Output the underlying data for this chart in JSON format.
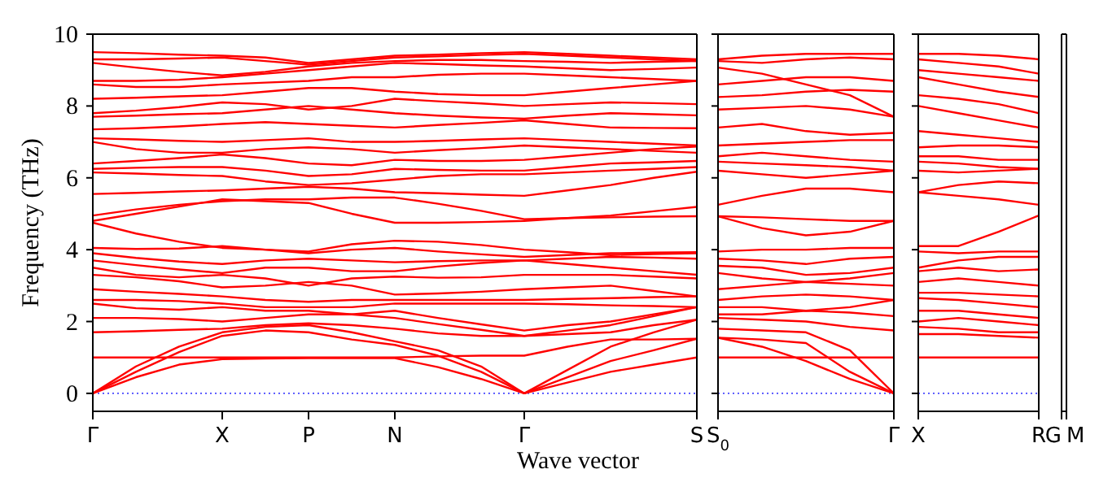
{
  "chart_data": [
    {
      "type": "line",
      "xlabel": "Wave vector",
      "ylabel": "Frequency (THz)",
      "categories": [
        "Γ",
        null,
        null,
        "X",
        null,
        "P",
        null,
        "N",
        null,
        null,
        "Γ",
        null,
        null,
        null,
        "S"
      ],
      "ylim": [
        -0.5,
        10
      ],
      "yticks": [
        0,
        2,
        4,
        6,
        8,
        10
      ],
      "marker": "none",
      "line_style": "solid",
      "ref_lines": [
        {
          "axis": "y",
          "value": 0,
          "color": "#0000ff",
          "line_style": "dotted"
        }
      ],
      "series": [
        {
          "color": "#ff0000",
          "values": [
            0,
            0.45,
            0.8,
            0.95,
            0.97,
            0.98,
            0.98,
            0.98,
            0.73,
            0.4,
            0,
            0.3,
            0.6,
            0.8,
            1.0
          ]
        },
        {
          "color": "#ff0000",
          "values": [
            0,
            0.6,
            1.15,
            1.6,
            1.75,
            1.7,
            1.5,
            1.35,
            1.05,
            0.6,
            0,
            0.45,
            0.9,
            1.2,
            1.52
          ]
        },
        {
          "color": "#ff0000",
          "values": [
            0,
            0.75,
            1.3,
            1.7,
            1.85,
            1.9,
            1.7,
            1.45,
            1.2,
            0.75,
            0,
            0.65,
            1.3,
            1.7,
            2.05
          ]
        },
        {
          "color": "#ff0000",
          "values": [
            1,
            1,
            1,
            1,
            1,
            1,
            1,
            1,
            1.03,
            1.05,
            1.05,
            1.3,
            1.5,
            1.5,
            1.52
          ]
        },
        {
          "color": "#ff0000",
          "values": [
            1.7,
            1.73,
            1.77,
            1.8,
            1.9,
            1.95,
            1.9,
            1.8,
            1.67,
            1.6,
            1.6,
            1.75,
            1.9,
            2.15,
            2.4
          ]
        },
        {
          "color": "#ff0000",
          "values": [
            2.1,
            2.1,
            2.07,
            2.0,
            2.1,
            2.2,
            2.2,
            2.1,
            1.93,
            1.77,
            1.6,
            1.65,
            1.7,
            1.9,
            2.05
          ]
        },
        {
          "color": "#ff0000",
          "values": [
            2.5,
            2.37,
            2.33,
            2.4,
            2.3,
            2.3,
            2.2,
            2.3,
            2.1,
            1.92,
            1.75,
            1.9,
            2.0,
            2.2,
            2.4
          ]
        },
        {
          "color": "#ff0000",
          "values": [
            2.6,
            2.6,
            2.57,
            2.5,
            2.4,
            2.4,
            2.4,
            2.5,
            2.5,
            2.5,
            2.5,
            2.48,
            2.45,
            2.43,
            2.4
          ]
        },
        {
          "color": "#ff0000",
          "values": [
            2.9,
            2.83,
            2.77,
            2.7,
            2.6,
            2.55,
            2.6,
            2.6,
            2.6,
            2.6,
            2.6,
            2.63,
            2.65,
            2.68,
            2.7
          ]
        },
        {
          "color": "#ff0000",
          "values": [
            3.3,
            3.23,
            3.12,
            2.95,
            3.0,
            3.1,
            3.0,
            2.75,
            2.78,
            2.83,
            2.9,
            2.95,
            3.0,
            2.85,
            2.7
          ]
        },
        {
          "color": "#ff0000",
          "values": [
            3.5,
            3.3,
            3.23,
            3.3,
            3.2,
            3.0,
            3.2,
            3.25,
            3.22,
            3.23,
            3.3,
            3.3,
            3.3,
            3.25,
            3.2
          ]
        },
        {
          "color": "#ff0000",
          "values": [
            3.7,
            3.57,
            3.45,
            3.35,
            3.5,
            3.5,
            3.4,
            3.4,
            3.53,
            3.63,
            3.7,
            3.6,
            3.5,
            3.4,
            3.3
          ]
        },
        {
          "color": "#ff0000",
          "values": [
            3.9,
            3.77,
            3.67,
            3.6,
            3.7,
            3.75,
            3.7,
            3.65,
            3.68,
            3.7,
            3.7,
            3.75,
            3.8,
            3.78,
            3.75
          ]
        },
        {
          "color": "#ff0000",
          "values": [
            4.05,
            4.02,
            4.03,
            4.1,
            4.0,
            3.9,
            4.0,
            4.05,
            3.95,
            3.87,
            3.8,
            3.85,
            3.9,
            3.92,
            3.93
          ]
        },
        {
          "color": "#ff0000",
          "values": [
            4.75,
            4.45,
            4.22,
            4.05,
            4.0,
            3.95,
            4.15,
            4.25,
            4.22,
            4.13,
            4.0,
            3.93,
            3.85,
            3.88,
            3.9
          ]
        },
        {
          "color": "#ff0000",
          "values": [
            4.8,
            5.0,
            5.2,
            5.4,
            5.35,
            5.3,
            5.0,
            4.75,
            4.75,
            4.77,
            4.8,
            4.88,
            4.95,
            5.07,
            5.19
          ]
        },
        {
          "color": "#ff0000",
          "values": [
            4.95,
            5.12,
            5.25,
            5.35,
            5.4,
            5.4,
            5.45,
            5.45,
            5.28,
            5.08,
            4.85,
            4.88,
            4.9,
            4.92,
            4.93
          ]
        },
        {
          "color": "#ff0000",
          "values": [
            5.55,
            5.58,
            5.62,
            5.65,
            5.7,
            5.75,
            5.7,
            5.6,
            5.57,
            5.53,
            5.5,
            5.65,
            5.8,
            6.0,
            6.17
          ]
        },
        {
          "color": "#ff0000",
          "values": [
            6.15,
            6.12,
            6.08,
            6.05,
            5.9,
            5.8,
            5.85,
            5.95,
            6.05,
            6.1,
            6.1,
            6.15,
            6.2,
            6.25,
            6.3
          ]
        },
        {
          "color": "#ff0000",
          "values": [
            6.25,
            6.28,
            6.3,
            6.3,
            6.2,
            6.05,
            6.1,
            6.25,
            6.22,
            6.2,
            6.2,
            6.3,
            6.4,
            6.43,
            6.47
          ]
        },
        {
          "color": "#ff0000",
          "values": [
            6.4,
            6.47,
            6.55,
            6.65,
            6.55,
            6.4,
            6.35,
            6.5,
            6.47,
            6.47,
            6.5,
            6.6,
            6.7,
            6.8,
            6.87
          ]
        },
        {
          "color": "#ff0000",
          "values": [
            7.0,
            6.8,
            6.7,
            6.7,
            6.8,
            6.85,
            6.8,
            6.7,
            6.77,
            6.83,
            6.9,
            6.85,
            6.8,
            6.75,
            6.7
          ]
        },
        {
          "color": "#ff0000",
          "values": [
            7.1,
            7.07,
            7.03,
            7.0,
            7.05,
            7.1,
            7.0,
            7.0,
            7.03,
            7.07,
            7.1,
            7.05,
            7.0,
            6.95,
            6.9
          ]
        },
        {
          "color": "#ff0000",
          "values": [
            7.35,
            7.38,
            7.43,
            7.5,
            7.55,
            7.5,
            7.45,
            7.4,
            7.47,
            7.53,
            7.6,
            7.5,
            7.4,
            7.39,
            7.38
          ]
        },
        {
          "color": "#ff0000",
          "values": [
            7.7,
            7.73,
            7.77,
            7.8,
            7.9,
            8.0,
            7.9,
            7.8,
            7.73,
            7.68,
            7.65,
            7.73,
            7.8,
            7.77,
            7.74
          ]
        },
        {
          "color": "#ff0000",
          "values": [
            7.8,
            7.87,
            7.97,
            8.1,
            8.05,
            7.9,
            8.0,
            8.2,
            8.13,
            8.07,
            8.0,
            8.05,
            8.1,
            8.08,
            8.05
          ]
        },
        {
          "color": "#ff0000",
          "values": [
            8.2,
            8.23,
            8.27,
            8.3,
            8.4,
            8.5,
            8.5,
            8.4,
            8.33,
            8.3,
            8.3,
            8.4,
            8.5,
            8.6,
            8.7
          ]
        },
        {
          "color": "#ff0000",
          "values": [
            8.6,
            8.53,
            8.53,
            8.6,
            8.65,
            8.7,
            8.8,
            8.8,
            8.87,
            8.9,
            8.9,
            8.85,
            8.8,
            8.75,
            8.7
          ]
        },
        {
          "color": "#ff0000",
          "values": [
            8.7,
            8.7,
            8.73,
            8.8,
            8.9,
            9.0,
            9.1,
            9.2,
            9.17,
            9.13,
            9.1,
            9.05,
            9.0,
            9.03,
            9.07
          ]
        },
        {
          "color": "#ff0000",
          "values": [
            9.2,
            9.07,
            8.95,
            8.85,
            8.95,
            9.1,
            9.2,
            9.25,
            9.28,
            9.28,
            9.25,
            9.23,
            9.2,
            9.23,
            9.25
          ]
        },
        {
          "color": "#ff0000",
          "values": [
            9.3,
            9.3,
            9.32,
            9.35,
            9.25,
            9.15,
            9.25,
            9.35,
            9.38,
            9.42,
            9.45,
            9.4,
            9.35,
            9.3,
            9.25
          ]
        },
        {
          "color": "#ff0000",
          "values": [
            9.5,
            9.47,
            9.43,
            9.4,
            9.35,
            9.2,
            9.3,
            9.4,
            9.43,
            9.47,
            9.5,
            9.45,
            9.4,
            9.35,
            9.3
          ]
        }
      ]
    },
    {
      "type": "line",
      "categories": [
        "S$_{0}$",
        null,
        null,
        null,
        "Γ"
      ],
      "ylim": [
        -0.5,
        10
      ],
      "yticks": [
        0,
        2,
        4,
        6,
        8,
        10
      ],
      "tick_labels": "x",
      "marker": "none",
      "line_style": "solid",
      "ref_lines": [
        {
          "axis": "y",
          "value": 0,
          "color": "#0000ff",
          "line_style": "dotted"
        }
      ],
      "series": [
        {
          "color": "#ff0000",
          "values": [
            9.3,
            9.4,
            9.45,
            9.45,
            9.45
          ]
        },
        {
          "color": "#ff0000",
          "values": [
            9.25,
            9.2,
            9.3,
            9.35,
            9.3
          ]
        },
        {
          "color": "#ff0000",
          "values": [
            9.07,
            8.9,
            8.6,
            8.3,
            7.7
          ]
        },
        {
          "color": "#ff0000",
          "values": [
            8.6,
            8.7,
            8.8,
            8.8,
            8.7
          ]
        },
        {
          "color": "#ff0000",
          "values": [
            8.25,
            8.3,
            8.4,
            8.45,
            8.4
          ]
        },
        {
          "color": "#ff0000",
          "values": [
            7.9,
            7.95,
            8.0,
            7.9,
            7.7
          ]
        },
        {
          "color": "#ff0000",
          "values": [
            7.4,
            7.5,
            7.3,
            7.2,
            7.25
          ]
        },
        {
          "color": "#ff0000",
          "values": [
            6.9,
            6.95,
            7.0,
            7.05,
            7.05
          ]
        },
        {
          "color": "#ff0000",
          "values": [
            6.6,
            6.7,
            6.6,
            6.5,
            6.45
          ]
        },
        {
          "color": "#ff0000",
          "values": [
            6.45,
            6.4,
            6.35,
            6.3,
            6.2
          ]
        },
        {
          "color": "#ff0000",
          "values": [
            6.2,
            6.1,
            6.0,
            6.1,
            6.2
          ]
        },
        {
          "color": "#ff0000",
          "values": [
            5.25,
            5.5,
            5.7,
            5.7,
            5.6
          ]
        },
        {
          "color": "#ff0000",
          "values": [
            4.93,
            4.6,
            4.4,
            4.5,
            4.8
          ]
        },
        {
          "color": "#ff0000",
          "values": [
            4.93,
            4.9,
            4.85,
            4.8,
            4.8
          ]
        },
        {
          "color": "#ff0000",
          "values": [
            3.95,
            4.0,
            4.0,
            4.05,
            4.05
          ]
        },
        {
          "color": "#ff0000",
          "values": [
            3.75,
            3.7,
            3.6,
            3.75,
            3.8
          ]
        },
        {
          "color": "#ff0000",
          "values": [
            3.55,
            3.5,
            3.3,
            3.35,
            3.5
          ]
        },
        {
          "color": "#ff0000",
          "values": [
            3.35,
            3.2,
            3.1,
            3.2,
            3.35
          ]
        },
        {
          "color": "#ff0000",
          "values": [
            2.9,
            3.0,
            3.1,
            3.05,
            3.0
          ]
        },
        {
          "color": "#ff0000",
          "values": [
            2.6,
            2.7,
            2.75,
            2.7,
            2.6
          ]
        },
        {
          "color": "#ff0000",
          "values": [
            2.4,
            2.4,
            2.3,
            2.4,
            2.6
          ]
        },
        {
          "color": "#ff0000",
          "values": [
            2.2,
            2.2,
            2.3,
            2.25,
            2.15
          ]
        },
        {
          "color": "#ff0000",
          "values": [
            2.1,
            2.05,
            2.0,
            1.85,
            1.75
          ]
        },
        {
          "color": "#ff0000",
          "values": [
            1.8,
            1.75,
            1.7,
            1.2,
            0
          ]
        },
        {
          "color": "#ff0000",
          "values": [
            1.55,
            1.5,
            1.4,
            0.6,
            0
          ]
        },
        {
          "color": "#ff0000",
          "values": [
            1.55,
            1.3,
            0.9,
            0.4,
            0
          ]
        },
        {
          "color": "#ff0000",
          "values": [
            1.0,
            1.0,
            1.0,
            1.0,
            1.0
          ]
        }
      ]
    },
    {
      "type": "line",
      "categories": [
        "X",
        null,
        null,
        "R"
      ],
      "ylim": [
        -0.5,
        10
      ],
      "yticks": [
        0,
        2,
        4,
        6,
        8,
        10
      ],
      "tick_labels": "x",
      "marker": "none",
      "line_style": "solid",
      "ref_lines": [
        {
          "axis": "y",
          "value": 0,
          "color": "#0000ff",
          "line_style": "dotted"
        }
      ],
      "series": [
        {
          "color": "#ff0000",
          "values": [
            9.45,
            9.45,
            9.4,
            9.3
          ]
        },
        {
          "color": "#ff0000",
          "values": [
            9.3,
            9.2,
            9.1,
            8.9
          ]
        },
        {
          "color": "#ff0000",
          "values": [
            9.0,
            8.9,
            8.8,
            8.7
          ]
        },
        {
          "color": "#ff0000",
          "values": [
            8.8,
            8.6,
            8.4,
            8.25
          ]
        },
        {
          "color": "#ff0000",
          "values": [
            8.3,
            8.2,
            8.05,
            7.8
          ]
        },
        {
          "color": "#ff0000",
          "values": [
            8.0,
            7.8,
            7.6,
            7.4
          ]
        },
        {
          "color": "#ff0000",
          "values": [
            7.3,
            7.2,
            7.1,
            7.0
          ]
        },
        {
          "color": "#ff0000",
          "values": [
            6.85,
            6.9,
            6.9,
            6.85
          ]
        },
        {
          "color": "#ff0000",
          "values": [
            6.6,
            6.6,
            6.5,
            6.5
          ]
        },
        {
          "color": "#ff0000",
          "values": [
            6.45,
            6.4,
            6.3,
            6.25
          ]
        },
        {
          "color": "#ff0000",
          "values": [
            6.2,
            6.15,
            6.2,
            6.25
          ]
        },
        {
          "color": "#ff0000",
          "values": [
            5.6,
            5.8,
            5.9,
            5.85
          ]
        },
        {
          "color": "#ff0000",
          "values": [
            5.6,
            5.5,
            5.4,
            5.25
          ]
        },
        {
          "color": "#ff0000",
          "values": [
            4.1,
            4.1,
            4.5,
            4.95
          ]
        },
        {
          "color": "#ff0000",
          "values": [
            3.95,
            3.9,
            3.95,
            3.95
          ]
        },
        {
          "color": "#ff0000",
          "values": [
            3.5,
            3.7,
            3.8,
            3.8
          ]
        },
        {
          "color": "#ff0000",
          "values": [
            3.4,
            3.5,
            3.4,
            3.45
          ]
        },
        {
          "color": "#ff0000",
          "values": [
            3.1,
            3.2,
            3.1,
            3.0
          ]
        },
        {
          "color": "#ff0000",
          "values": [
            2.8,
            2.8,
            2.75,
            2.7
          ]
        },
        {
          "color": "#ff0000",
          "values": [
            2.65,
            2.6,
            2.5,
            2.4
          ]
        },
        {
          "color": "#ff0000",
          "values": [
            2.3,
            2.3,
            2.2,
            2.1
          ]
        },
        {
          "color": "#ff0000",
          "values": [
            2.0,
            2.1,
            2.0,
            1.9
          ]
        },
        {
          "color": "#ff0000",
          "values": [
            1.85,
            1.8,
            1.7,
            1.7
          ]
        },
        {
          "color": "#ff0000",
          "values": [
            1.65,
            1.65,
            1.6,
            1.55
          ]
        },
        {
          "color": "#ff0000",
          "values": [
            1.0,
            1.0,
            1.0,
            1.0
          ]
        }
      ]
    },
    {
      "type": "line",
      "categories": [
        "G",
        "M"
      ],
      "ylim": [
        -0.5,
        10
      ],
      "yticks": [
        0,
        2,
        4,
        6,
        8,
        10
      ],
      "tick_labels": "x"
    }
  ]
}
